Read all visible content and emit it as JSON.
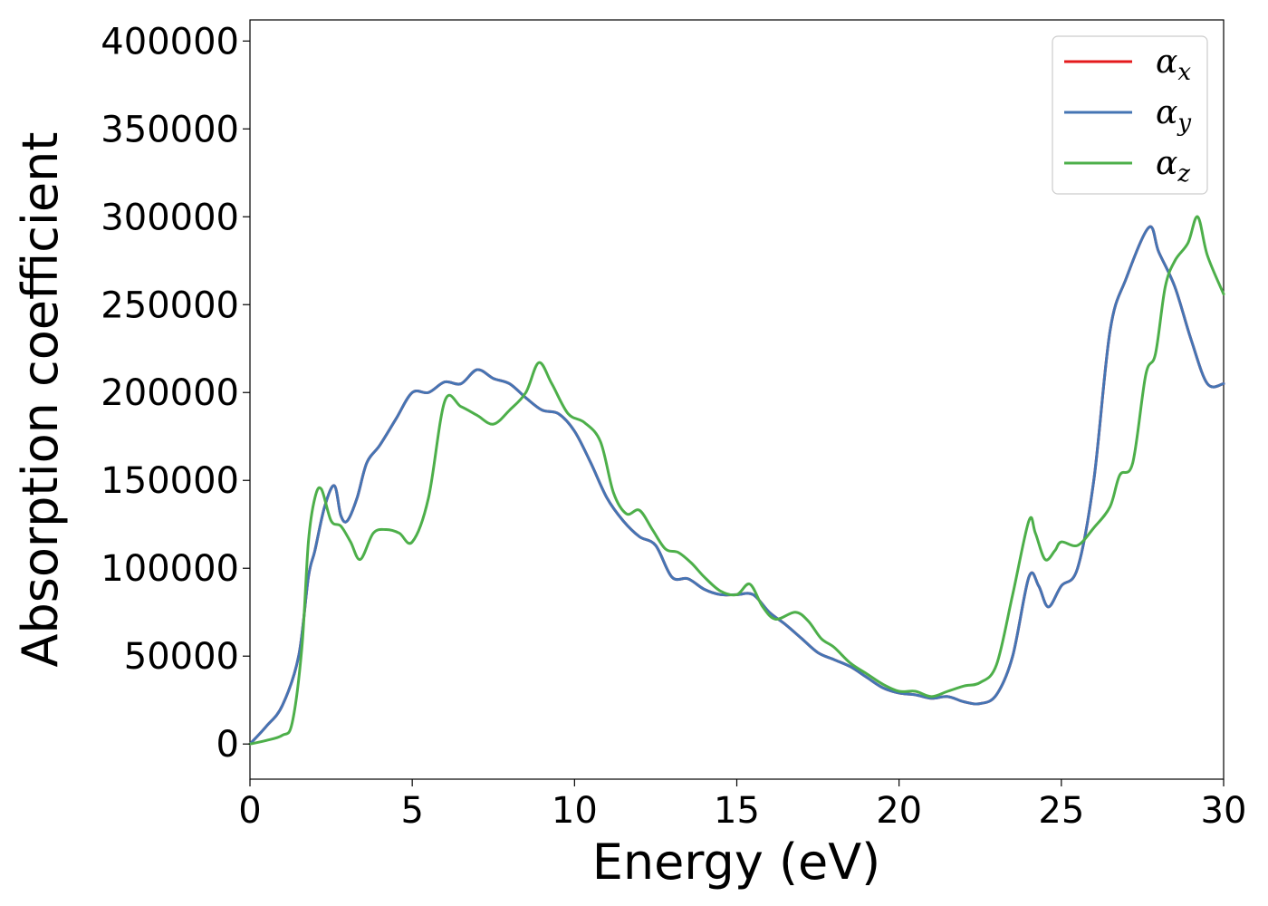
{
  "chart_data": {
    "type": "line",
    "title": "",
    "xlabel": "Energy (eV)",
    "ylabel": "Absorption coefficient",
    "xlim": [
      0,
      30
    ],
    "ylim": [
      -20000,
      412000
    ],
    "xticks": [
      0,
      5,
      10,
      15,
      20,
      25,
      30
    ],
    "xtick_labels": [
      "0",
      "5",
      "10",
      "15",
      "20",
      "25",
      "30"
    ],
    "yticks": [
      0,
      50000,
      100000,
      150000,
      200000,
      250000,
      300000,
      350000,
      400000
    ],
    "ytick_labels": [
      "0",
      "50000",
      "100000",
      "150000",
      "200000",
      "250000",
      "300000",
      "350000",
      "400000"
    ],
    "grid": false,
    "legend": {
      "placement": "top-right",
      "entries": [
        {
          "symbol": "α",
          "sub": "x"
        },
        {
          "symbol": "α",
          "sub": "y"
        },
        {
          "symbol": "α",
          "sub": "z"
        }
      ]
    },
    "series": [
      {
        "key": "alpha_x",
        "color": "#e41a1c",
        "x": [
          0,
          0.5,
          1.0,
          1.5,
          1.8,
          2.0,
          2.3,
          2.6,
          2.8,
          3.0,
          3.3,
          3.6,
          4.0,
          4.5,
          5.0,
          5.5,
          6.0,
          6.5,
          7.0,
          7.5,
          8.0,
          8.5,
          9.0,
          9.5,
          10.0,
          10.5,
          11.0,
          11.5,
          12.0,
          12.5,
          13.0,
          13.5,
          14.0,
          14.5,
          15.0,
          15.5,
          16.0,
          16.5,
          17.0,
          17.5,
          18.0,
          18.5,
          19.0,
          19.5,
          20.0,
          20.5,
          21.0,
          21.5,
          22.0,
          22.5,
          23.0,
          23.5,
          24.0,
          24.3,
          24.6,
          25.0,
          25.5,
          26.0,
          26.5,
          27.0,
          27.7,
          28.0,
          28.5,
          29.0,
          29.5,
          30.0
        ],
        "y": [
          0,
          10000,
          22000,
          50000,
          95000,
          110000,
          135000,
          147000,
          130000,
          127000,
          140000,
          160000,
          170000,
          185000,
          200000,
          200000,
          206000,
          205000,
          213000,
          208000,
          205000,
          197000,
          190000,
          188000,
          178000,
          160000,
          140000,
          127000,
          118000,
          113000,
          95000,
          94000,
          88000,
          85000,
          85000,
          85000,
          75000,
          68000,
          60000,
          52000,
          48000,
          44000,
          38000,
          32000,
          29000,
          28000,
          26000,
          27000,
          24000,
          23000,
          28000,
          50000,
          95000,
          90000,
          78000,
          90000,
          100000,
          150000,
          235000,
          265000,
          294000,
          280000,
          260000,
          230000,
          205000,
          205000
        ]
      },
      {
        "key": "alpha_y",
        "color": "#4575b4",
        "x": [
          0,
          0.5,
          1.0,
          1.5,
          1.8,
          2.0,
          2.3,
          2.6,
          2.8,
          3.0,
          3.3,
          3.6,
          4.0,
          4.5,
          5.0,
          5.5,
          6.0,
          6.5,
          7.0,
          7.5,
          8.0,
          8.5,
          9.0,
          9.5,
          10.0,
          10.5,
          11.0,
          11.5,
          12.0,
          12.5,
          13.0,
          13.5,
          14.0,
          14.5,
          15.0,
          15.5,
          16.0,
          16.5,
          17.0,
          17.5,
          18.0,
          18.5,
          19.0,
          19.5,
          20.0,
          20.5,
          21.0,
          21.5,
          22.0,
          22.5,
          23.0,
          23.5,
          24.0,
          24.3,
          24.6,
          25.0,
          25.5,
          26.0,
          26.5,
          27.0,
          27.7,
          28.0,
          28.5,
          29.0,
          29.5,
          30.0
        ],
        "y": [
          0,
          10000,
          22000,
          50000,
          95000,
          110000,
          135000,
          147000,
          130000,
          127000,
          140000,
          160000,
          170000,
          185000,
          200000,
          200000,
          206000,
          205000,
          213000,
          208000,
          205000,
          197000,
          190000,
          188000,
          178000,
          160000,
          140000,
          127000,
          118000,
          113000,
          95000,
          94000,
          88000,
          85000,
          85000,
          85000,
          75000,
          68000,
          60000,
          52000,
          48000,
          44000,
          38000,
          32000,
          29000,
          28000,
          26000,
          27000,
          24000,
          23000,
          28000,
          50000,
          95000,
          90000,
          78000,
          90000,
          100000,
          150000,
          235000,
          265000,
          294000,
          280000,
          260000,
          230000,
          205000,
          205000
        ]
      },
      {
        "key": "alpha_z",
        "color": "#4daf4a",
        "x": [
          0,
          0.5,
          1.0,
          1.3,
          1.6,
          1.8,
          2.0,
          2.2,
          2.5,
          2.8,
          3.1,
          3.4,
          3.8,
          4.2,
          4.6,
          5.0,
          5.5,
          6.0,
          6.5,
          7.0,
          7.5,
          8.0,
          8.5,
          8.9,
          9.3,
          9.8,
          10.3,
          10.8,
          11.2,
          11.6,
          12.0,
          12.4,
          12.8,
          13.2,
          13.6,
          14.0,
          14.5,
          15.0,
          15.4,
          15.8,
          16.2,
          16.8,
          17.2,
          17.6,
          18.0,
          18.5,
          19.0,
          19.5,
          20.0,
          20.5,
          21.0,
          21.5,
          22.0,
          22.5,
          23.0,
          23.5,
          24.0,
          24.2,
          24.5,
          24.8,
          25.0,
          25.5,
          26.0,
          26.5,
          26.8,
          27.2,
          27.6,
          27.9,
          28.2,
          28.5,
          28.9,
          29.2,
          29.5,
          30.0
        ],
        "y": [
          0,
          2000,
          5000,
          12000,
          55000,
          115000,
          140000,
          145000,
          127000,
          124000,
          115000,
          105000,
          120000,
          122000,
          120000,
          115000,
          140000,
          195000,
          192000,
          187000,
          182000,
          190000,
          200000,
          217000,
          205000,
          188000,
          183000,
          172000,
          143000,
          131000,
          133000,
          122000,
          111000,
          109000,
          103000,
          95000,
          87000,
          85000,
          91000,
          78000,
          71000,
          75000,
          70000,
          60000,
          55000,
          46000,
          40000,
          34000,
          30000,
          30000,
          27000,
          30000,
          33000,
          35000,
          45000,
          85000,
          127000,
          120000,
          105000,
          110000,
          115000,
          113000,
          123000,
          135000,
          153000,
          160000,
          210000,
          222000,
          260000,
          275000,
          285000,
          300000,
          278000,
          256000
        ]
      }
    ]
  }
}
